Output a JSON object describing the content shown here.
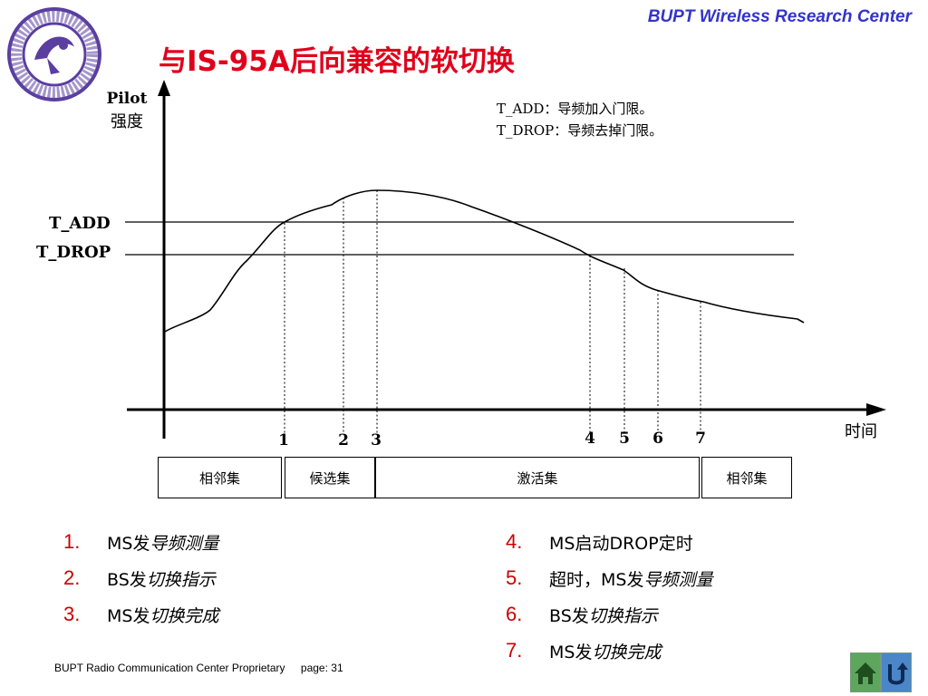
{
  "header": {
    "center": "BUPT Wireless Research Center"
  },
  "title": "与IS-95A后向兼容的软切换",
  "logo": {
    "icon": "university-seal-icon"
  },
  "diagram": {
    "y_axis_label_en": "Pilot",
    "y_axis_label_cn": "强度",
    "x_axis_label": "时间",
    "levels": {
      "add": "T_ADD",
      "drop": "T_DROP"
    },
    "notes": [
      "T_ADD：导频加入门限。",
      "T_DROP：导频去掉门限。"
    ],
    "events": [
      "1",
      "2",
      "3",
      "4",
      "5",
      "6",
      "7"
    ],
    "sets": [
      "相邻集",
      "候选集",
      "激活集",
      "相邻集"
    ]
  },
  "steps_left": [
    {
      "num": "1.",
      "prefix": "MS发",
      "text": "导频测量"
    },
    {
      "num": "2.",
      "prefix": "BS发",
      "text": "切换指示"
    },
    {
      "num": "3.",
      "prefix": "MS发",
      "text": "切换完成"
    }
  ],
  "steps_right": [
    {
      "num": "4.",
      "prefix": "MS启动DROP定时",
      "text": ""
    },
    {
      "num": "5.",
      "prefix": "超时，MS发",
      "text": "导频测量"
    },
    {
      "num": "6.",
      "prefix": "BS发",
      "text": "切换指示"
    },
    {
      "num": "7.",
      "prefix": "MS发",
      "text": "切换完成"
    }
  ],
  "footer": {
    "text": "BUPT Radio Communication Center Proprietary",
    "page": "page: 31"
  },
  "nav": {
    "home_icon": "home-icon",
    "back_icon": "return-arrow-icon"
  },
  "colors": {
    "title": "#e0001b",
    "header": "#3333cc",
    "list_number": "#cc0000"
  }
}
